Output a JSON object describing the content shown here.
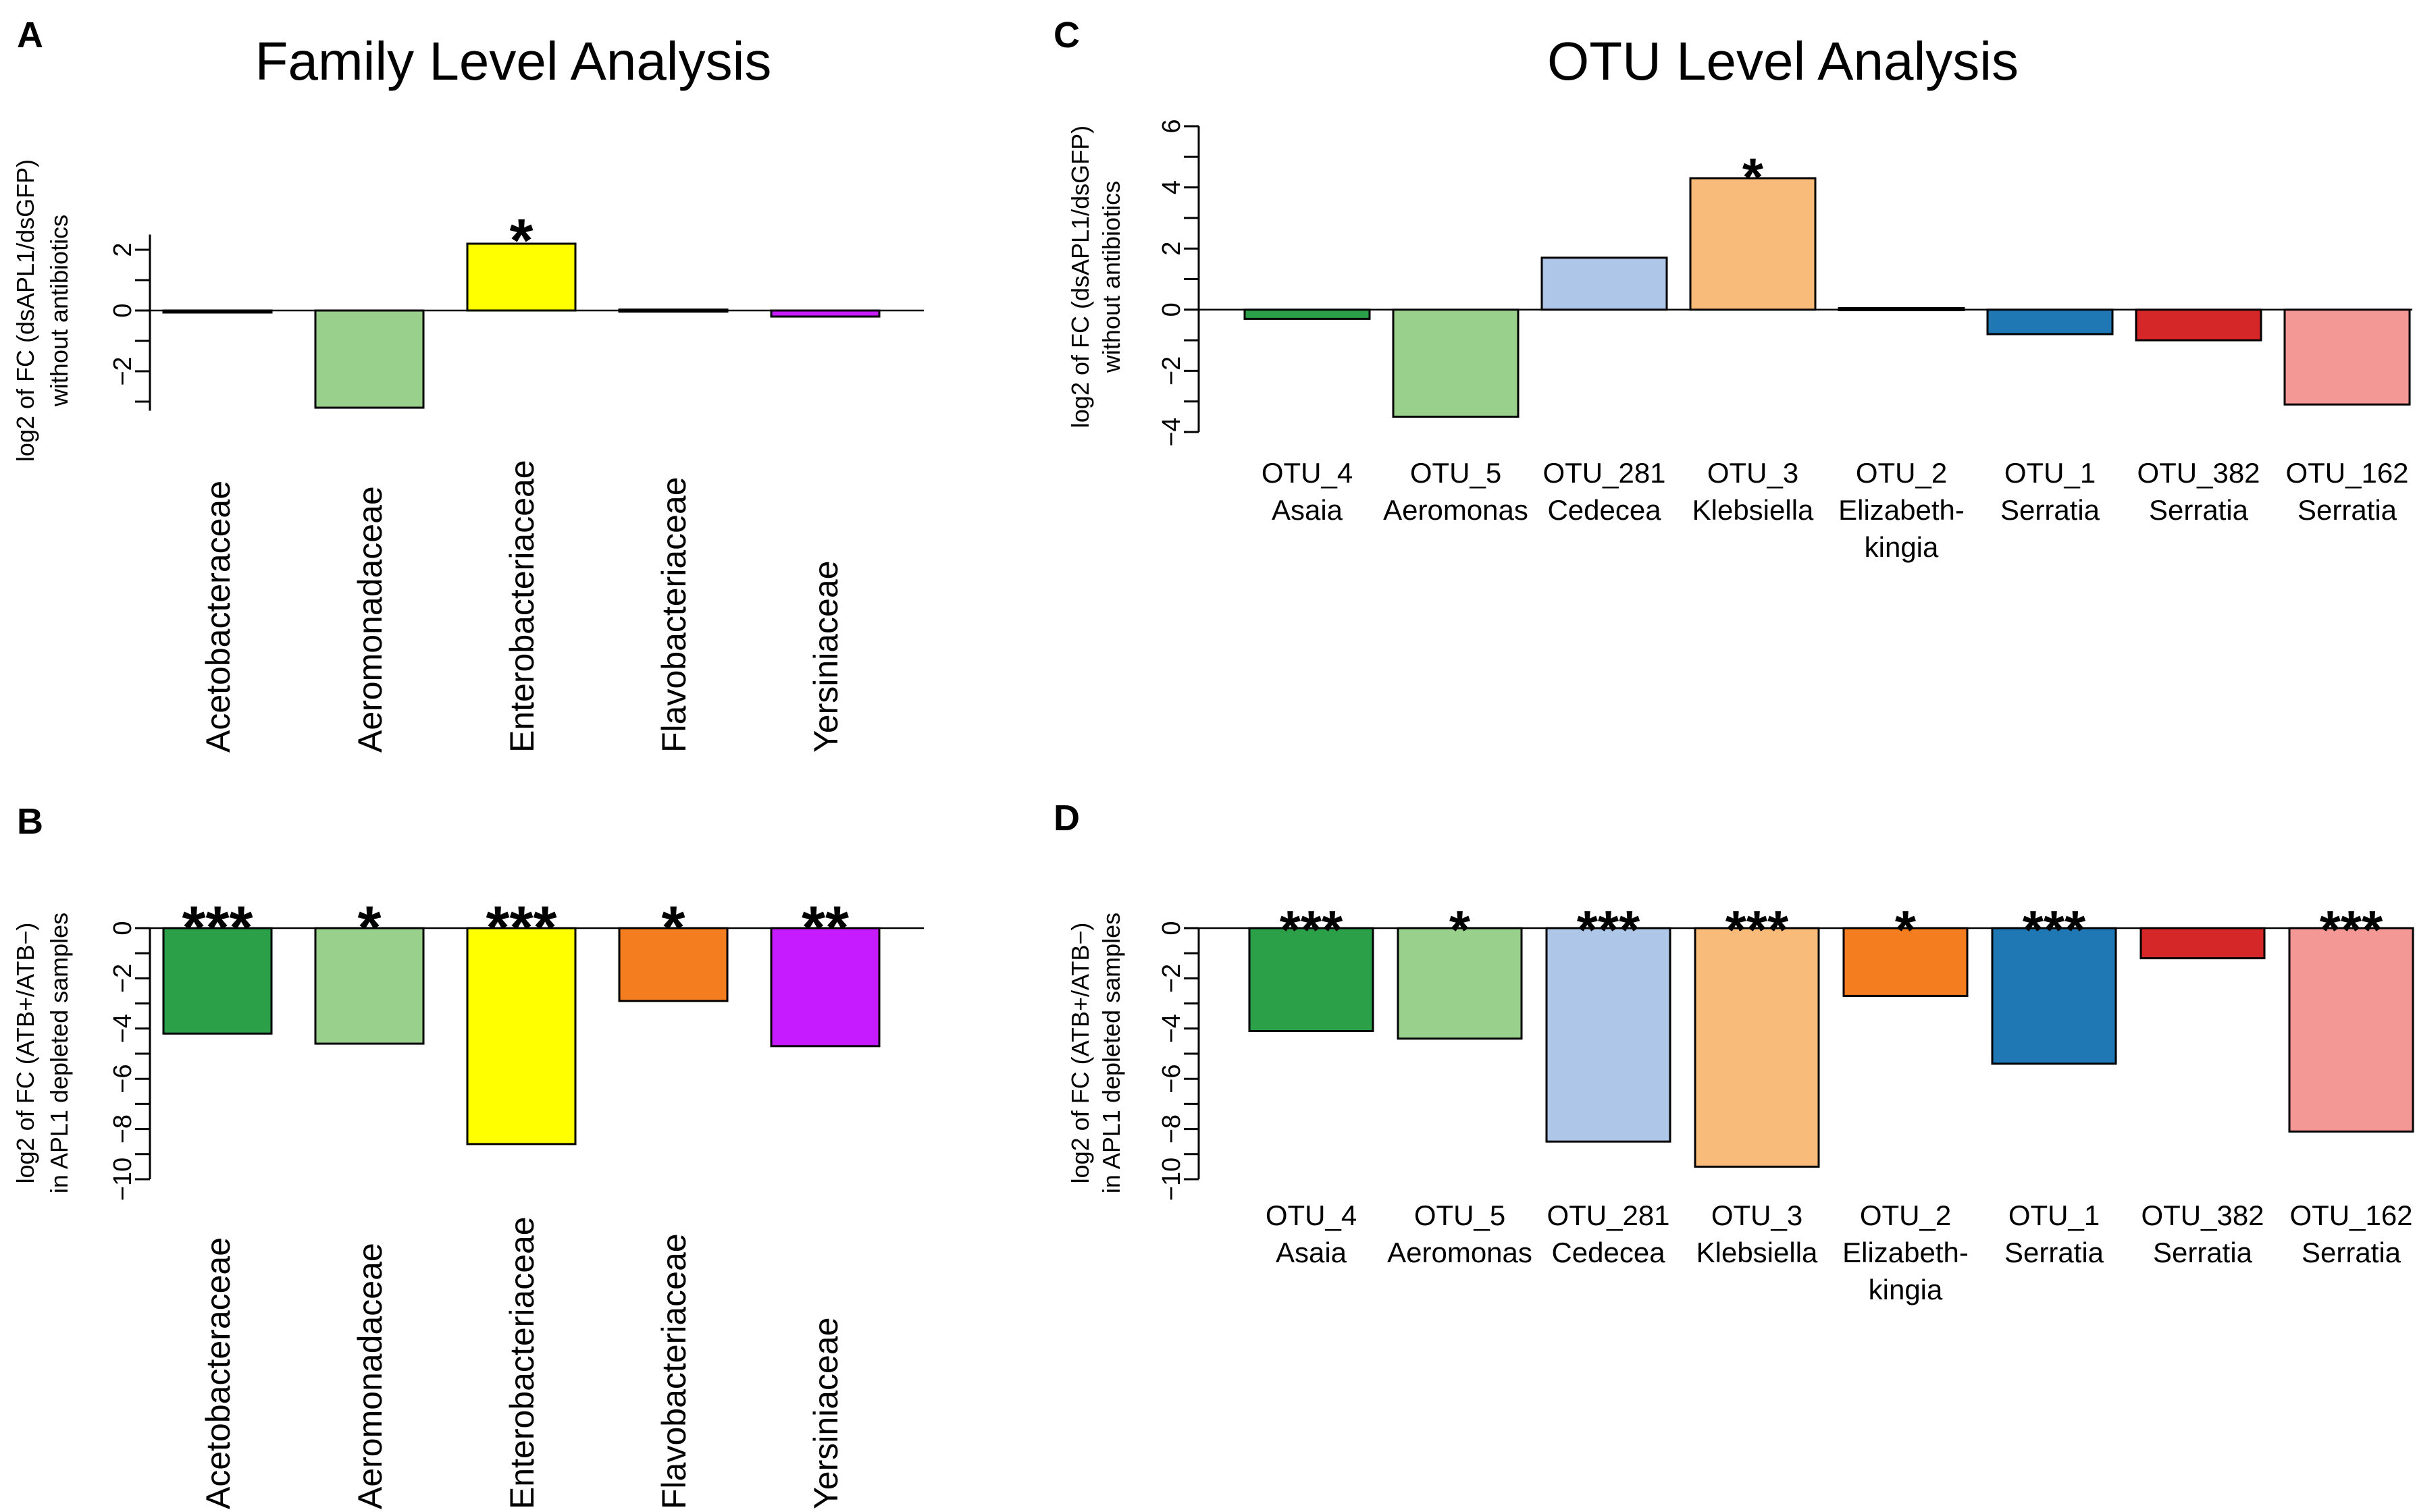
{
  "figure": {
    "family_title": "Family Level Analysis",
    "otu_title": "OTU Level Analysis"
  },
  "chart_data": [
    {
      "id": "A",
      "panel_label": "A",
      "type": "bar",
      "ylabel_lines": [
        "log2 of FC (dsAPL1/dsGFP)",
        "without antibiotics"
      ],
      "ylim": [
        -3.3,
        2.5
      ],
      "yticks": [
        -2,
        0,
        2
      ],
      "yticklabels": [
        "−2",
        "0",
        "2"
      ],
      "categories": [
        [
          "Acetobacteraceae"
        ],
        [
          "Aeromonadaceae"
        ],
        [
          "Enterobacteriaceae"
        ],
        [
          "Flavobacteriaceae"
        ],
        [
          "Yersiniaceae"
        ]
      ],
      "values": [
        -0.03,
        -3.2,
        2.2,
        0.03,
        -0.2
      ],
      "colors": [
        "#2ca048",
        "#98d08c",
        "#ffff00",
        "#f47d20",
        "#c61aff"
      ],
      "significance": [
        "",
        "",
        "*",
        "",
        ""
      ]
    },
    {
      "id": "B",
      "panel_label": "B",
      "type": "bar",
      "ylabel_lines": [
        "log2 of FC (ATB+/ATB−)",
        "in APL1 depleted samples"
      ],
      "ylim": [
        -10,
        0
      ],
      "yticks": [
        0,
        -2,
        -4,
        -6,
        -8,
        -10
      ],
      "yticklabels": [
        "0",
        "−2",
        "−4",
        "−6",
        "−8",
        "−10"
      ],
      "categories": [
        [
          "Acetobacteraceae"
        ],
        [
          "Aeromonadaceae"
        ],
        [
          "Enterobacteriaceae"
        ],
        [
          "Flavobacteriaceae"
        ],
        [
          "Yersiniaceae"
        ]
      ],
      "values": [
        -4.2,
        -4.6,
        -8.6,
        -2.9,
        -4.7
      ],
      "colors": [
        "#2ca048",
        "#98d08c",
        "#ffff00",
        "#f47d20",
        "#c61aff"
      ],
      "significance": [
        "***",
        "*",
        "***",
        "*",
        "**"
      ]
    },
    {
      "id": "C",
      "panel_label": "C",
      "type": "bar",
      "ylabel_lines": [
        "log2 of FC (dsAPL1/dsGFP)",
        "without antibiotics"
      ],
      "ylim": [
        -4,
        6
      ],
      "yticks": [
        -4,
        -2,
        0,
        2,
        4,
        6
      ],
      "yticklabels": [
        "−4",
        "−2",
        "0",
        "2",
        "4",
        "6"
      ],
      "categories": [
        [
          "OTU_4",
          "Asaia"
        ],
        [
          "OTU_5",
          "Aeromonas"
        ],
        [
          "OTU_281",
          "Cedecea"
        ],
        [
          "OTU_3",
          "Klebsiella"
        ],
        [
          "OTU_2",
          "Elizabeth-",
          "kingia"
        ],
        [
          "OTU_1",
          "Serratia"
        ],
        [
          "OTU_382",
          "Serratia"
        ],
        [
          "OTU_162",
          "Serratia"
        ]
      ],
      "values": [
        -0.3,
        -3.5,
        1.7,
        4.3,
        0.05,
        -0.8,
        -1.0,
        -3.1
      ],
      "colors": [
        "#2ca048",
        "#98d08c",
        "#aec6e8",
        "#f9bb7a",
        "#f47d20",
        "#1f77b4",
        "#d62728",
        "#f49896"
      ],
      "significance": [
        "",
        "",
        "",
        "*",
        "",
        "",
        "",
        ""
      ]
    },
    {
      "id": "D",
      "panel_label": "D",
      "type": "bar",
      "ylabel_lines": [
        "log2 of FC (ATB+/ATB−)",
        "in APL1 depleted samples"
      ],
      "ylim": [
        -10,
        0
      ],
      "yticks": [
        0,
        -2,
        -4,
        -6,
        -8,
        -10
      ],
      "yticklabels": [
        "0",
        "−2",
        "−4",
        "−6",
        "−8",
        "−10"
      ],
      "categories": [
        [
          "OTU_4",
          "Asaia"
        ],
        [
          "OTU_5",
          "Aeromonas"
        ],
        [
          "OTU_281",
          "Cedecea"
        ],
        [
          "OTU_3",
          "Klebsiella"
        ],
        [
          "OTU_2",
          "Elizabeth-",
          "kingia"
        ],
        [
          "OTU_1",
          "Serratia"
        ],
        [
          "OTU_382",
          "Serratia"
        ],
        [
          "OTU_162",
          "Serratia"
        ]
      ],
      "values": [
        -4.1,
        -4.4,
        -8.5,
        -9.5,
        -2.7,
        -5.4,
        -1.2,
        -8.1
      ],
      "colors": [
        "#2ca048",
        "#98d08c",
        "#aec6e8",
        "#f9bb7a",
        "#f47d20",
        "#1f77b4",
        "#d62728",
        "#f49896"
      ],
      "significance": [
        "***",
        "*",
        "***",
        "***",
        "*",
        "***",
        "",
        "***"
      ]
    }
  ]
}
